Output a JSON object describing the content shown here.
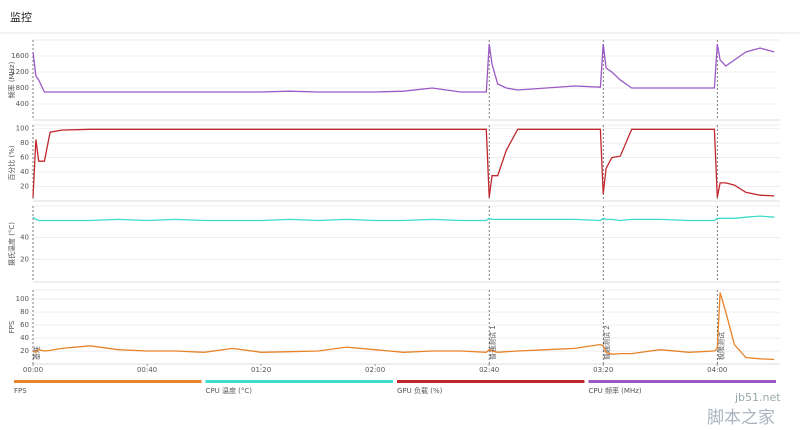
{
  "header": {
    "title": "监控"
  },
  "chart_data": [
    {
      "type": "line",
      "y_label": "频率 (MHz)",
      "xlim": [
        0,
        262
      ],
      "ylim": [
        0,
        2000
      ],
      "yticks": [
        400,
        800,
        1200,
        1600
      ],
      "grid": true,
      "x": [
        0,
        1,
        2,
        4,
        6,
        10,
        20,
        30,
        40,
        50,
        60,
        70,
        80,
        90,
        100,
        110,
        120,
        130,
        140,
        150,
        159,
        160,
        161,
        163,
        166,
        170,
        180,
        190,
        199,
        200,
        201,
        203,
        206,
        210,
        220,
        230,
        239,
        240,
        241,
        243,
        246,
        250,
        255,
        260
      ],
      "series": [
        {
          "name": "CPU 频率 (MHz)",
          "color": "#9b59c6",
          "values": [
            1700,
            1100,
            1000,
            700,
            700,
            700,
            700,
            700,
            700,
            700,
            700,
            700,
            700,
            720,
            700,
            700,
            700,
            720,
            800,
            700,
            700,
            1900,
            1400,
            900,
            800,
            750,
            800,
            850,
            820,
            1900,
            1300,
            1200,
            1000,
            800,
            800,
            800,
            800,
            1900,
            1500,
            1350,
            1500,
            1700,
            1800,
            1700
          ]
        }
      ]
    },
    {
      "type": "line",
      "y_label": "百分比 (%)",
      "xlim": [
        0,
        262
      ],
      "ylim": [
        0,
        105
      ],
      "yticks": [
        20,
        40,
        60,
        80,
        100
      ],
      "grid": true,
      "x": [
        0,
        1,
        2,
        4,
        6,
        10,
        20,
        30,
        40,
        50,
        60,
        70,
        80,
        90,
        100,
        110,
        120,
        130,
        140,
        150,
        159,
        160,
        161,
        163,
        166,
        170,
        180,
        190,
        199,
        200,
        201,
        203,
        206,
        210,
        220,
        230,
        239,
        240,
        241,
        243,
        246,
        250,
        255,
        260
      ],
      "series": [
        {
          "name": "GPU 负载 (%)",
          "color": "#c0282d",
          "values": [
            5,
            85,
            55,
            55,
            95,
            98,
            99,
            99,
            99,
            99,
            99,
            99,
            99,
            99,
            99,
            99,
            99,
            99,
            99,
            99,
            99,
            5,
            35,
            35,
            70,
            99,
            99,
            99,
            99,
            10,
            45,
            60,
            62,
            99,
            99,
            99,
            99,
            5,
            25,
            25,
            22,
            12,
            8,
            7
          ]
        }
      ]
    },
    {
      "type": "line",
      "y_label": "摄氏温度 (°C)",
      "xlim": [
        0,
        262
      ],
      "ylim": [
        0,
        68
      ],
      "yticks": [
        20,
        40
      ],
      "grid": true,
      "x": [
        0,
        1,
        2,
        4,
        6,
        10,
        20,
        30,
        40,
        50,
        60,
        70,
        80,
        90,
        100,
        110,
        120,
        130,
        140,
        150,
        159,
        160,
        161,
        163,
        166,
        170,
        180,
        190,
        199,
        200,
        201,
        203,
        206,
        210,
        220,
        230,
        239,
        240,
        241,
        243,
        246,
        250,
        255,
        260
      ],
      "series": [
        {
          "name": "CPU 温度 (°C)",
          "color": "#3ddccb",
          "values": [
            58,
            56,
            55,
            55,
            55,
            55,
            55,
            56,
            55,
            56,
            55,
            55,
            55,
            56,
            55,
            56,
            55,
            55,
            56,
            55,
            55,
            57,
            56,
            56,
            56,
            56,
            56,
            56,
            55,
            57,
            56,
            56,
            55,
            56,
            56,
            55,
            55,
            57,
            57,
            57,
            57,
            58,
            59,
            58
          ]
        }
      ]
    },
    {
      "type": "line",
      "y_label": "FPS",
      "xlim": [
        0,
        262
      ],
      "ylim": [
        0,
        114
      ],
      "yticks": [
        20,
        40,
        60,
        80,
        100
      ],
      "grid": true,
      "xticks": [
        {
          "value": 0,
          "label": "00:00"
        },
        {
          "value": 40,
          "label": "00:40"
        },
        {
          "value": 80,
          "label": "01:20"
        },
        {
          "value": 120,
          "label": "02:00"
        },
        {
          "value": 160,
          "label": "02:40"
        },
        {
          "value": 200,
          "label": "03:20"
        },
        {
          "value": 240,
          "label": "04:00"
        }
      ],
      "x": [
        0,
        1,
        2,
        4,
        6,
        10,
        20,
        30,
        40,
        50,
        60,
        70,
        80,
        90,
        100,
        110,
        120,
        130,
        140,
        150,
        159,
        160,
        161,
        163,
        166,
        170,
        180,
        190,
        199,
        200,
        201,
        203,
        206,
        210,
        220,
        230,
        239,
        240,
        241,
        243,
        246,
        250,
        255,
        260
      ],
      "series": [
        {
          "name": "FPS",
          "color": "#e8832a",
          "values": [
            20,
            18,
            22,
            20,
            21,
            24,
            28,
            22,
            20,
            20,
            18,
            24,
            18,
            19,
            20,
            26,
            22,
            18,
            20,
            20,
            18,
            22,
            20,
            18,
            19,
            20,
            22,
            24,
            30,
            28,
            18,
            15,
            16,
            16,
            22,
            18,
            20,
            24,
            110,
            80,
            30,
            10,
            8,
            7
          ]
        }
      ]
    }
  ],
  "events": [
    {
      "x": 0,
      "label": "基准"
    },
    {
      "x": 160,
      "label": "普通测试 1"
    },
    {
      "x": 200,
      "label": "普通测试 2"
    },
    {
      "x": 240,
      "label": "极限测试"
    }
  ],
  "watermark": {
    "site": "jb51.net",
    "name": "脚本之家"
  }
}
